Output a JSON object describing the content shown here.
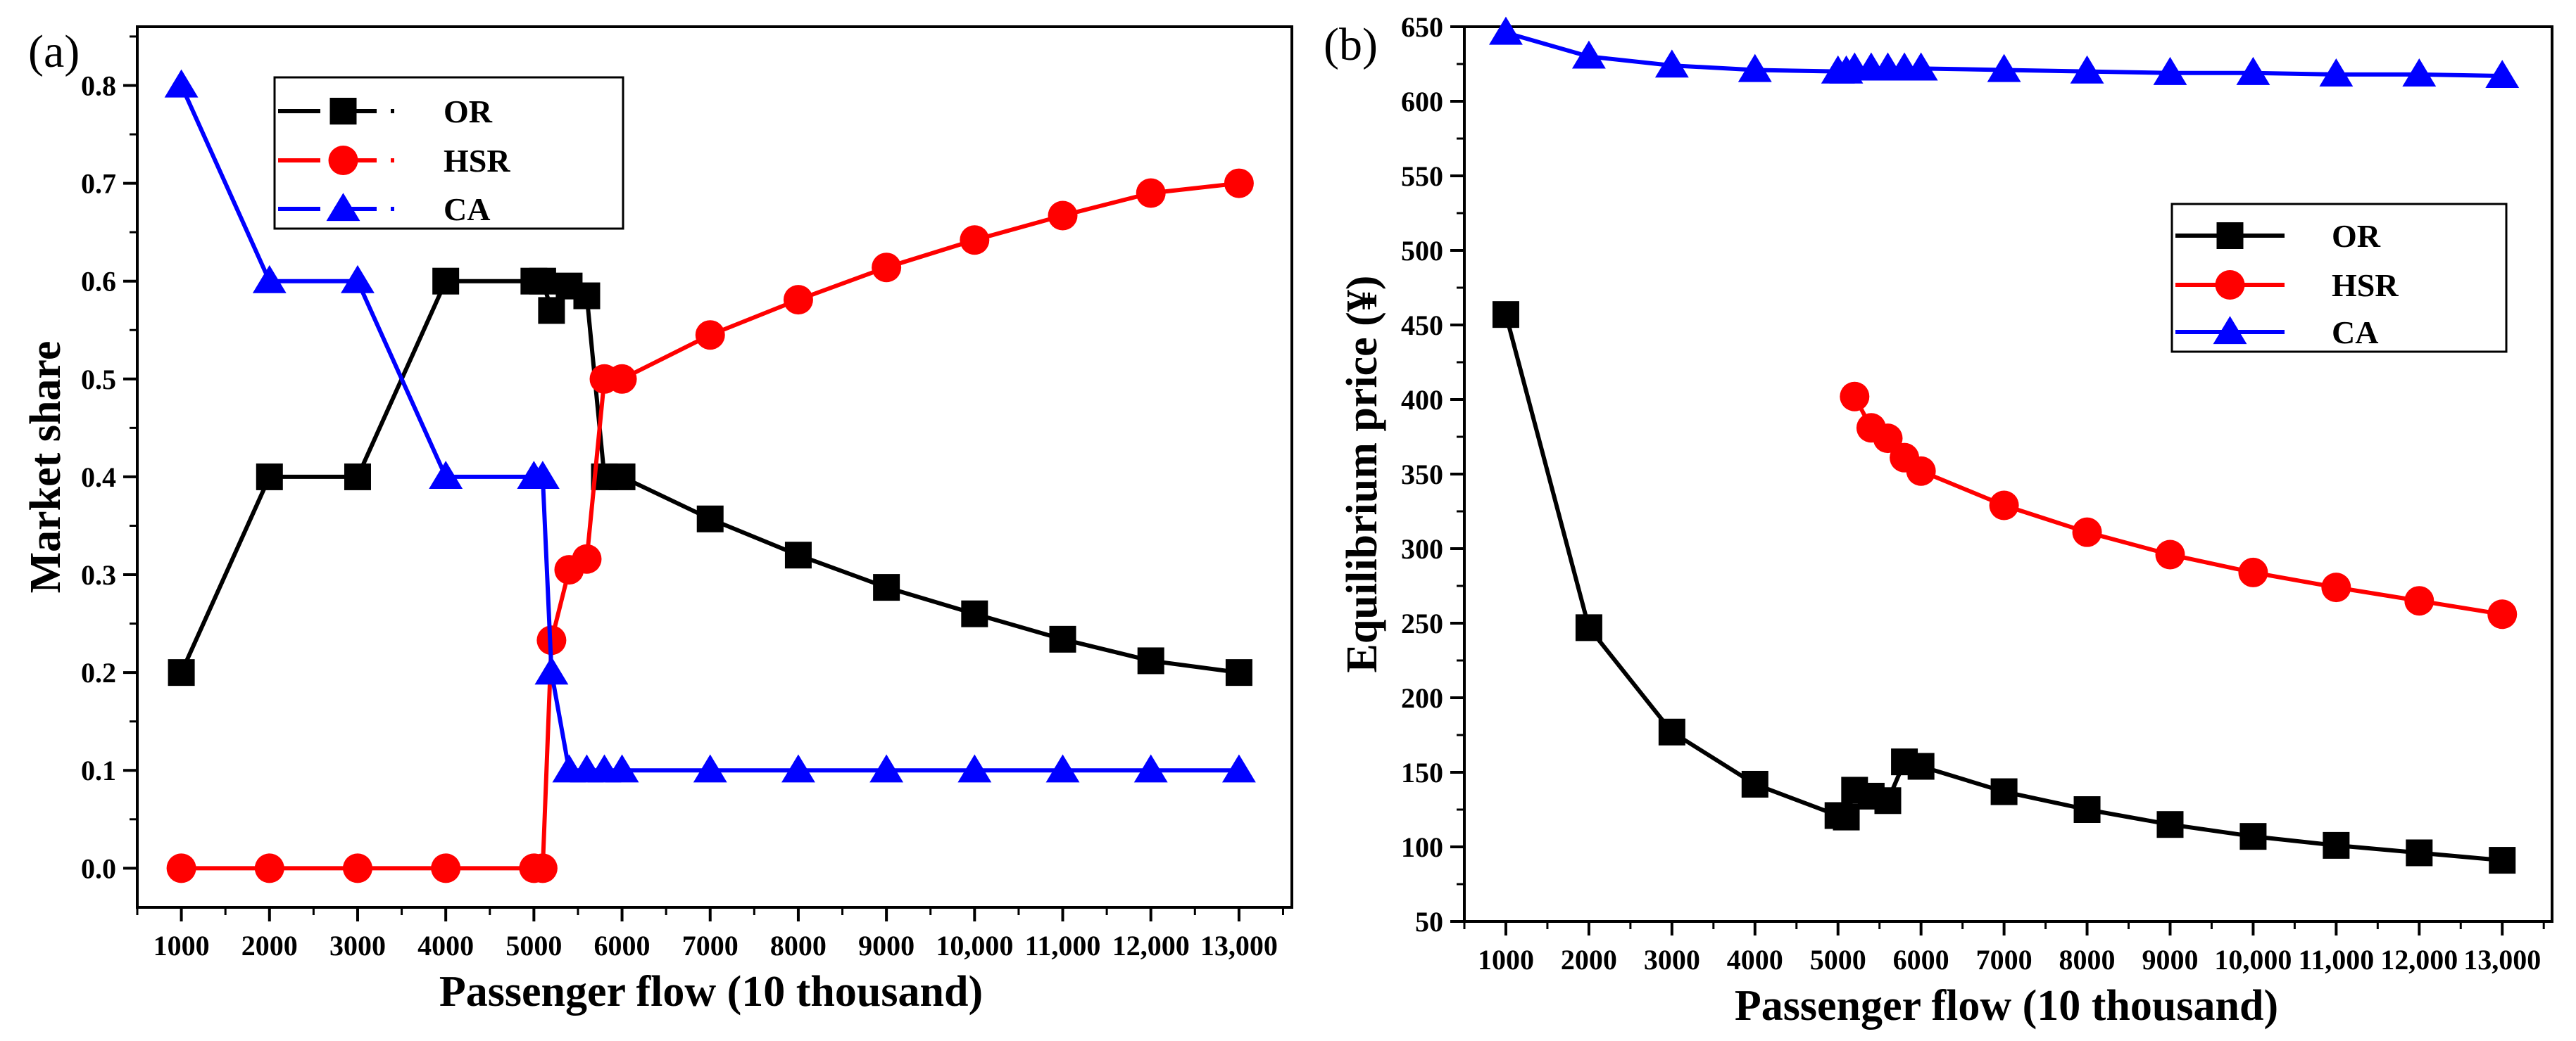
{
  "chart_data": [
    {
      "panel_label": "(a)",
      "type": "line",
      "xlabel": "Passenger flow (10 thousand)",
      "ylabel": "Market share",
      "x_ticks": [
        "1000",
        "2000",
        "3000",
        "4000",
        "5000",
        "6000",
        "7000",
        "8000",
        "9000",
        "10,000",
        "11,000",
        "12,000",
        "13,000"
      ],
      "y_ticks": [
        "0.0",
        "0.1",
        "0.2",
        "0.3",
        "0.4",
        "0.5",
        "0.6",
        "0.7",
        "0.8"
      ],
      "xlim": [
        500,
        13600
      ],
      "ylim": [
        -0.04,
        0.86
      ],
      "legend_position": "top-left",
      "series": [
        {
          "name": "OR",
          "color": "#000000",
          "marker": "square",
          "x": [
            1000,
            2000,
            3000,
            4000,
            5000,
            5100,
            5200,
            5400,
            5600,
            5800,
            6000,
            7000,
            8000,
            9000,
            10000,
            11000,
            12000,
            13000
          ],
          "y": [
            0.2,
            0.4,
            0.4,
            0.6,
            0.6,
            0.6,
            0.57,
            0.595,
            0.585,
            0.4,
            0.4,
            0.357,
            0.32,
            0.287,
            0.26,
            0.234,
            0.212,
            0.2
          ]
        },
        {
          "name": "HSR",
          "color": "#ff0000",
          "marker": "circle",
          "x": [
            1000,
            2000,
            3000,
            4000,
            5000,
            5100,
            5200,
            5400,
            5600,
            5800,
            6000,
            7000,
            8000,
            9000,
            10000,
            11000,
            12000,
            13000
          ],
          "y": [
            0,
            0,
            0,
            0,
            0,
            0,
            0.233,
            0.305,
            0.316,
            0.5,
            0.5,
            0.545,
            0.581,
            0.614,
            0.642,
            0.667,
            0.69,
            0.7
          ]
        },
        {
          "name": "CA",
          "color": "#0000ff",
          "marker": "triangle",
          "x": [
            1000,
            2000,
            3000,
            4000,
            5000,
            5100,
            5200,
            5400,
            5600,
            5800,
            6000,
            7000,
            8000,
            9000,
            10000,
            11000,
            12000,
            13000
          ],
          "y": [
            0.8,
            0.6,
            0.6,
            0.4,
            0.4,
            0.4,
            0.2,
            0.1,
            0.1,
            0.1,
            0.1,
            0.1,
            0.1,
            0.1,
            0.1,
            0.1,
            0.1,
            0.1
          ]
        }
      ]
    },
    {
      "panel_label": "(b)",
      "type": "line",
      "xlabel": "Passenger flow (10 thousand)",
      "ylabel": "Equilibrium price (¥)",
      "x_ticks": [
        "1000",
        "2000",
        "3000",
        "4000",
        "5000",
        "6000",
        "7000",
        "8000",
        "9000",
        "10,000",
        "11,000",
        "12,000",
        "13,000"
      ],
      "y_ticks": [
        "50",
        "100",
        "150",
        "200",
        "250",
        "300",
        "350",
        "400",
        "450",
        "500",
        "550",
        "600",
        "650"
      ],
      "xlim": [
        500,
        13600
      ],
      "ylim": [
        50,
        650
      ],
      "legend_position": "right",
      "series": [
        {
          "name": "OR",
          "color": "#000000",
          "marker": "square",
          "x": [
            1000,
            2000,
            3000,
            4000,
            5000,
            5100,
            5200,
            5400,
            5600,
            5800,
            6000,
            7000,
            8000,
            9000,
            10000,
            11000,
            12000,
            13000
          ],
          "y": [
            457,
            247,
            177,
            142,
            121,
            120,
            138,
            134,
            131,
            157,
            154,
            137,
            125,
            115,
            107,
            101,
            96,
            91
          ]
        },
        {
          "name": "HSR",
          "color": "#ff0000",
          "marker": "circle",
          "x": [
            5200,
            5400,
            5600,
            5800,
            6000,
            7000,
            8000,
            9000,
            10000,
            11000,
            12000,
            13000
          ],
          "y": [
            402,
            381,
            374,
            361,
            352,
            329,
            311,
            296,
            284,
            274,
            265,
            256
          ]
        },
        {
          "name": "CA",
          "color": "#0000ff",
          "marker": "triangle",
          "x": [
            1000,
            2000,
            3000,
            4000,
            5000,
            5100,
            5200,
            5400,
            5600,
            5800,
            6000,
            7000,
            8000,
            9000,
            10000,
            11000,
            12000,
            13000
          ],
          "y": [
            646,
            630,
            624,
            621,
            620,
            620,
            622,
            622,
            622,
            622,
            622,
            621,
            620,
            619,
            619,
            618,
            618,
            617
          ]
        }
      ]
    }
  ]
}
